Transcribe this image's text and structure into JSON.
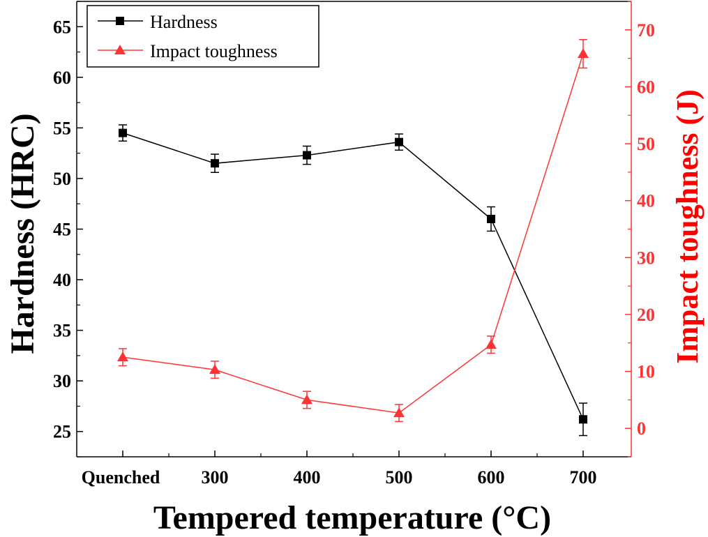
{
  "chart_data": {
    "type": "line",
    "categories": [
      "Quenched",
      "300",
      "400",
      "500",
      "600",
      "700"
    ],
    "xlabel": "Tempered temperature (°C)",
    "ylabel": "Hardness (HRC)",
    "y2label": "Impact toughness (J)",
    "ylim": [
      22.5,
      67.5
    ],
    "y2lim": [
      -5,
      75
    ],
    "yticks": [
      25,
      30,
      35,
      40,
      45,
      50,
      55,
      60,
      65
    ],
    "y2ticks": [
      0,
      10,
      20,
      30,
      40,
      50,
      60,
      70
    ],
    "legend_position": "top-left",
    "grid": false,
    "series": [
      {
        "name": "Hardness",
        "axis": "left",
        "color": "#000000",
        "marker": "square",
        "values": [
          54.5,
          51.5,
          52.3,
          53.6,
          46.0,
          26.2
        ],
        "errors": [
          0.8,
          0.9,
          0.9,
          0.8,
          1.2,
          1.6
        ]
      },
      {
        "name": "Impact toughness",
        "axis": "right",
        "color": "#ff3333",
        "marker": "triangle",
        "values": [
          12.5,
          10.3,
          5.0,
          2.7,
          14.7,
          65.8
        ],
        "errors": [
          1.5,
          1.5,
          1.5,
          1.5,
          1.5,
          2.5
        ]
      }
    ]
  }
}
